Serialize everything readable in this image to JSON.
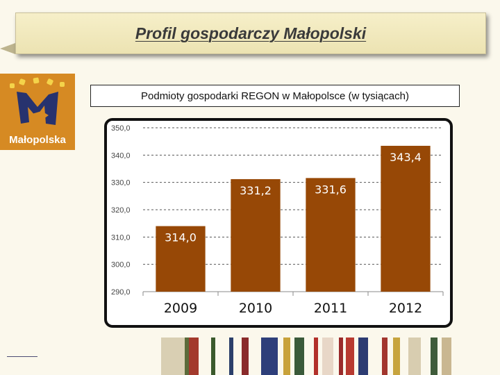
{
  "header": {
    "title": "Profil gospodarczy Małopolski"
  },
  "logo": {
    "text": "Małopolska"
  },
  "chart_data": {
    "type": "bar",
    "title": "Podmioty gospodarki REGON w Małopolsce (w tysiącach)",
    "categories": [
      "2009",
      "2010",
      "2011",
      "2012"
    ],
    "values": [
      314.0,
      331.2,
      331.6,
      343.4
    ],
    "value_labels": [
      "314,0",
      "331,2",
      "331,6",
      "343,4"
    ],
    "ylim": [
      290,
      350
    ],
    "yticks": [
      "290,0",
      "300,0",
      "310,0",
      "320,0",
      "330,0",
      "340,0",
      "350,0"
    ],
    "grid": true,
    "bar_color": "#974806"
  },
  "colors": {
    "background": "#fbf8ec",
    "banner": "#f2eac0",
    "logo_bg": "#d68a23",
    "bar": "#974806"
  }
}
